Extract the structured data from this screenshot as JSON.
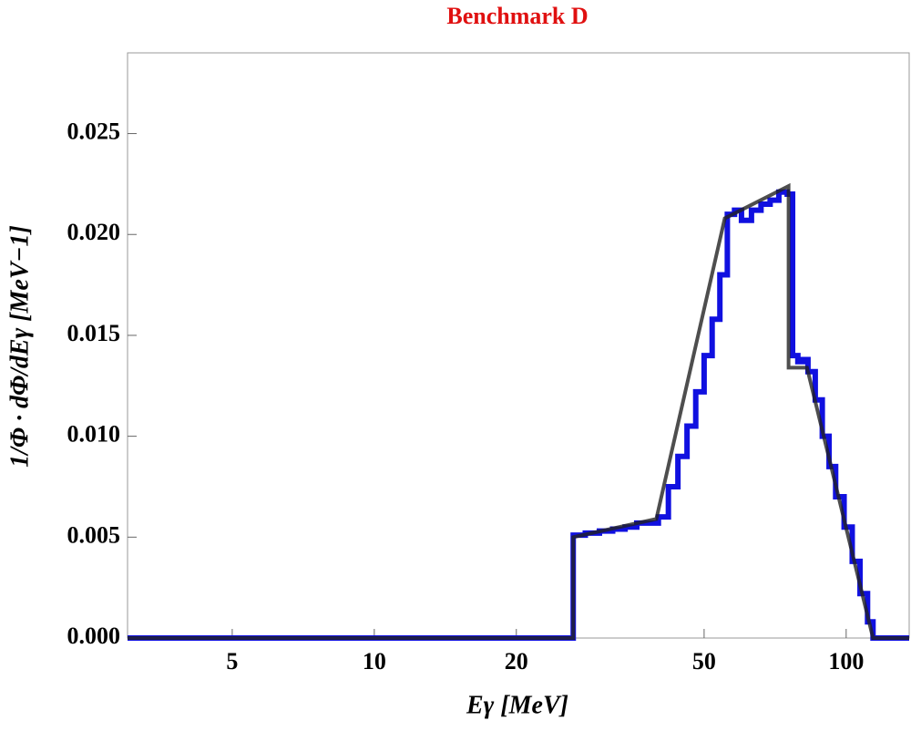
{
  "chart_data": {
    "type": "line",
    "title": "Benchmark D",
    "xlabel": "Eγ [MeV]",
    "ylabel": "1/Φ · dΦ/dEγ [MeV−1]",
    "xscale": "log",
    "xlim": [
      3,
      136
    ],
    "xticks": [
      5,
      10,
      20,
      50,
      100
    ],
    "ylim": [
      0,
      0.029
    ],
    "yticks": [
      {
        "value": 0,
        "label": "0.000"
      },
      {
        "value": 0.005,
        "label": "0.005"
      },
      {
        "value": 0.01,
        "label": "0.010"
      },
      {
        "value": 0.015,
        "label": "0.015"
      },
      {
        "value": 0.02,
        "label": "0.020"
      },
      {
        "value": 0.025,
        "label": "0.025"
      }
    ],
    "series": [
      {
        "color": "#1010e0",
        "style": "step",
        "x": [
          3,
          26.4,
          26.4,
          28,
          30,
          32,
          34,
          36,
          38,
          40,
          42,
          44,
          46,
          48,
          50,
          52,
          54,
          56,
          58,
          60,
          63,
          66,
          69,
          72,
          75,
          76,
          77,
          79,
          81,
          83,
          86,
          89,
          92,
          95,
          99,
          103,
          107,
          111,
          114,
          136
        ],
        "values": [
          0,
          0,
          0.0051,
          0.0052,
          0.0053,
          0.0054,
          0.0055,
          0.0057,
          0.0057,
          0.006,
          0.0075,
          0.009,
          0.0105,
          0.0122,
          0.014,
          0.0158,
          0.018,
          0.021,
          0.0212,
          0.0207,
          0.0212,
          0.0215,
          0.0217,
          0.0221,
          0.022,
          0.022,
          0.014,
          0.0137,
          0.0138,
          0.0132,
          0.0118,
          0.01,
          0.0085,
          0.007,
          0.0055,
          0.0038,
          0.0022,
          0.0008,
          0,
          0
        ]
      },
      {
        "color": "#222222",
        "style": "line",
        "x": [
          3,
          26.4,
          26.4,
          39.6,
          55.3,
          75.5,
          75.5,
          82.6,
          114,
          136
        ],
        "values": [
          0,
          0,
          0.005,
          0.0059,
          0.0208,
          0.0224,
          0.0134,
          0.0134,
          0,
          0
        ]
      }
    ]
  }
}
